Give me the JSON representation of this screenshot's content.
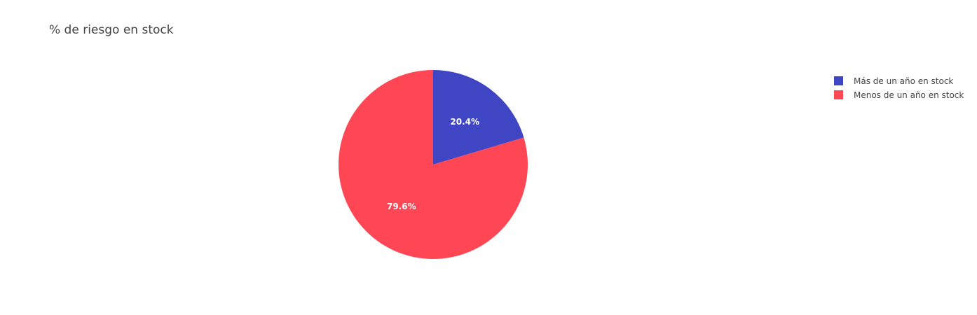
{
  "chart_data": {
    "type": "pie",
    "title": "% de riesgo en stock",
    "labels": [
      "Más de un año en stock",
      "Menos de un año en stock"
    ],
    "values": [
      20.4,
      79.6
    ],
    "text_labels": [
      "20.4%",
      "79.6%"
    ],
    "colors": [
      "#4046C3",
      "#FF4654"
    ],
    "legend_position": "top-right",
    "direction": "clockwise",
    "start": "top"
  }
}
